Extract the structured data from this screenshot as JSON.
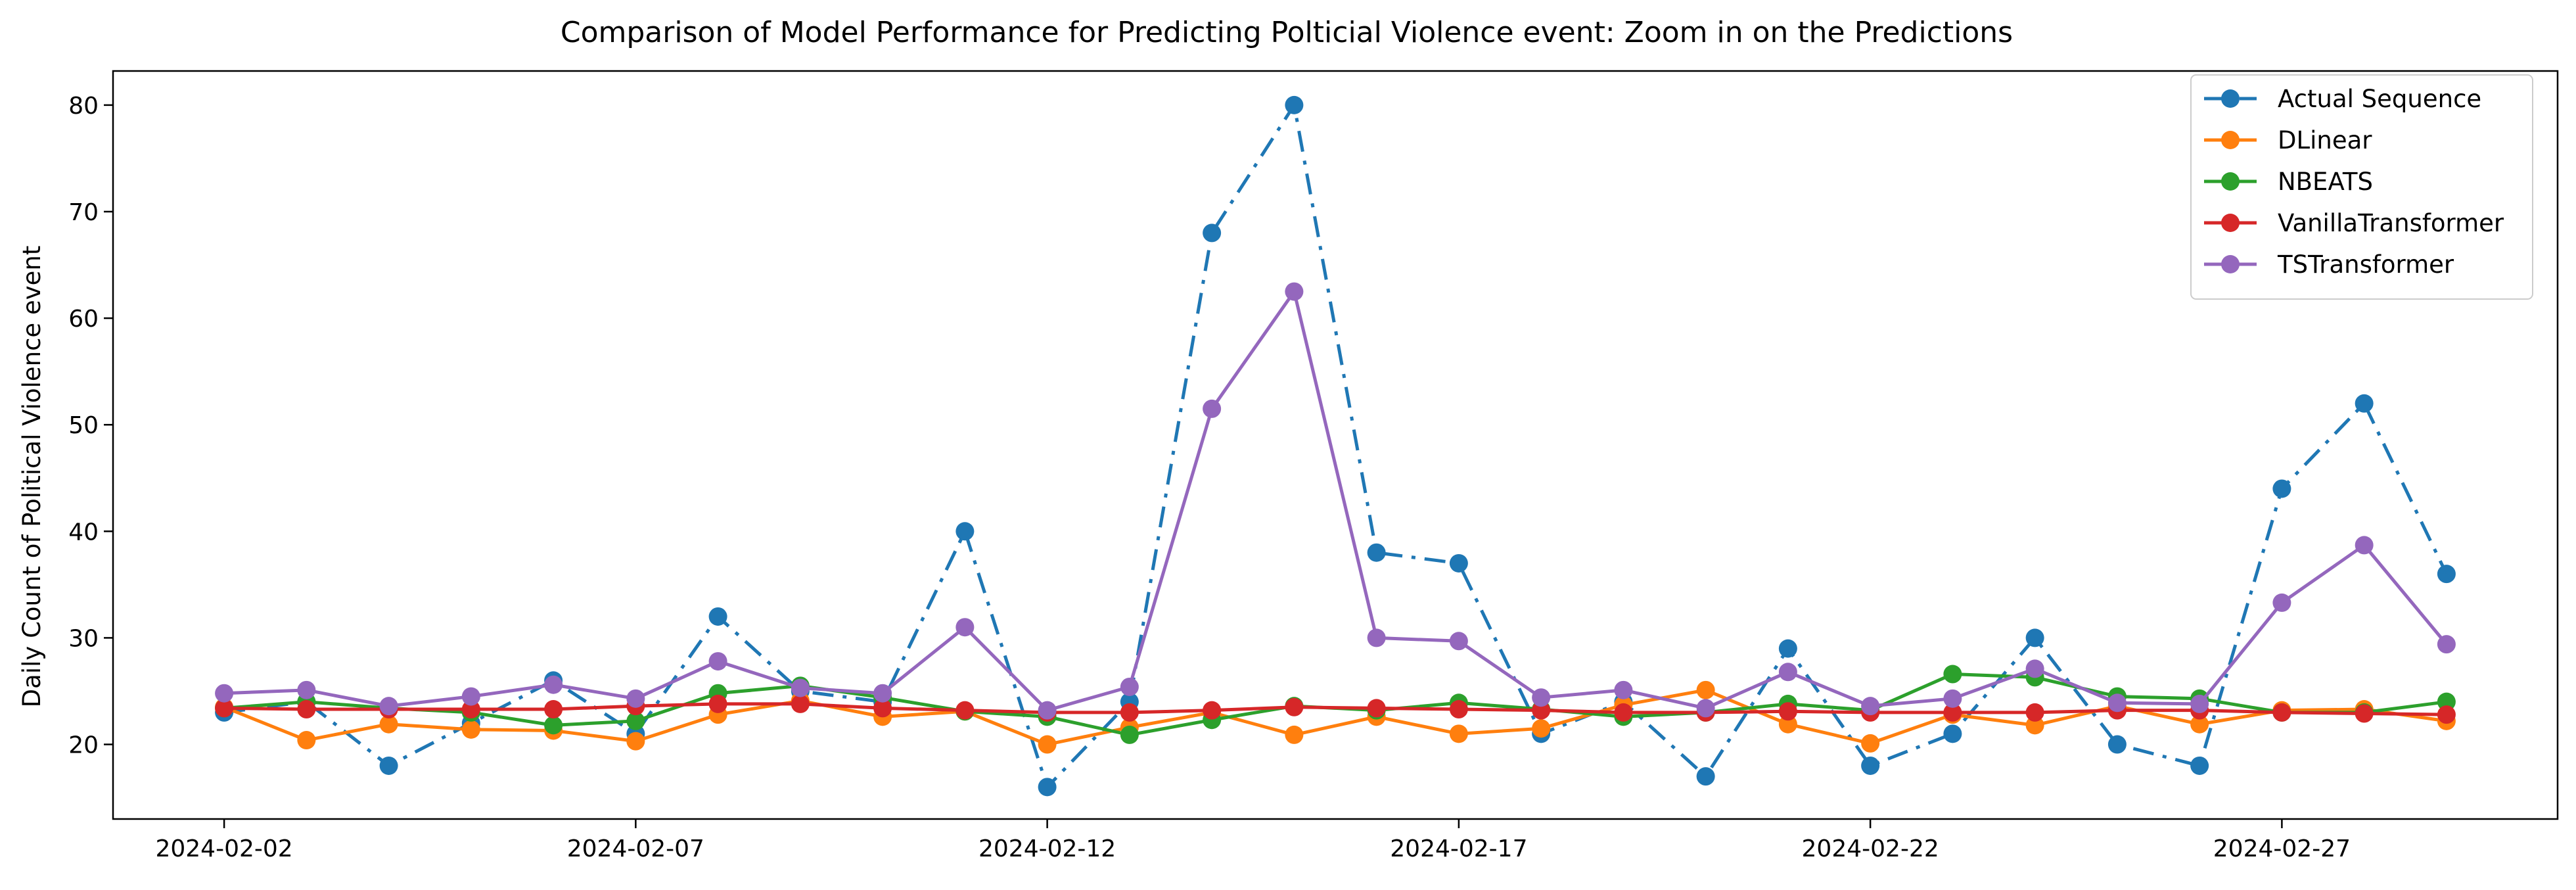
{
  "chart_data": {
    "type": "line",
    "title": "Comparison of Model Performance for Predicting Polticial Violence event: Zoom in on the Predictions",
    "xlabel": "",
    "ylabel": "Daily Count of Political Violence event",
    "x": [
      "2024-02-02",
      "2024-02-03",
      "2024-02-04",
      "2024-02-05",
      "2024-02-06",
      "2024-02-07",
      "2024-02-08",
      "2024-02-09",
      "2024-02-10",
      "2024-02-11",
      "2024-02-12",
      "2024-02-13",
      "2024-02-14",
      "2024-02-15",
      "2024-02-16",
      "2024-02-17",
      "2024-02-18",
      "2024-02-19",
      "2024-02-20",
      "2024-02-21",
      "2024-02-22",
      "2024-02-23",
      "2024-02-24",
      "2024-02-25",
      "2024-02-26",
      "2024-02-27",
      "2024-02-28",
      "2024-02-29"
    ],
    "x_ticks": [
      "2024-02-02",
      "2024-02-07",
      "2024-02-12",
      "2024-02-17",
      "2024-02-22",
      "2024-02-27"
    ],
    "xlim": [
      "2024-02-00.65",
      "2024-03-01.35"
    ],
    "y_ticks": [
      20,
      30,
      40,
      50,
      60,
      70,
      80
    ],
    "ylim": [
      13,
      83.2
    ],
    "grid": false,
    "legend_position": "top-right",
    "series": [
      {
        "name": "Actual Sequence",
        "color": "#1f77b4",
        "linestyle": "dashdot",
        "values": [
          23,
          24,
          18,
          22,
          26,
          21,
          32,
          25,
          24,
          40,
          16,
          24,
          68,
          80,
          38,
          37,
          21,
          24,
          17,
          29,
          18,
          21,
          30,
          20,
          18,
          44,
          52,
          36
        ]
      },
      {
        "name": "DLinear",
        "color": "#ff7f0e",
        "linestyle": "solid",
        "values": [
          23.5,
          20.4,
          21.9,
          21.4,
          21.3,
          20.3,
          22.8,
          24.1,
          22.6,
          23.1,
          20,
          21.6,
          23,
          20.9,
          22.6,
          21,
          21.5,
          23.7,
          25.1,
          21.9,
          20.1,
          22.8,
          21.8,
          23.6,
          21.9,
          23.2,
          23.3,
          22.2
        ]
      },
      {
        "name": "NBEATS",
        "color": "#2ca02c",
        "linestyle": "solid",
        "values": [
          23.4,
          24,
          23.4,
          23,
          21.8,
          22.2,
          24.8,
          25.5,
          24.4,
          23.1,
          22.6,
          20.9,
          22.3,
          23.6,
          23.2,
          23.9,
          23.3,
          22.6,
          23,
          23.8,
          23.2,
          26.6,
          26.3,
          24.5,
          24.3,
          23,
          23,
          24
        ]
      },
      {
        "name": "VanillaTransformer",
        "color": "#d62728",
        "linestyle": "solid",
        "values": [
          23.4,
          23.3,
          23.3,
          23.3,
          23.3,
          23.6,
          23.8,
          23.8,
          23.4,
          23.2,
          23,
          23,
          23.2,
          23.5,
          23.4,
          23.3,
          23.2,
          23,
          23,
          23.1,
          23,
          23,
          23,
          23.2,
          23.2,
          23,
          22.9,
          22.8
        ]
      },
      {
        "name": "TSTransformer",
        "color": "#9467bd",
        "linestyle": "solid",
        "values": [
          24.8,
          25.1,
          23.6,
          24.5,
          25.6,
          24.3,
          27.8,
          25.3,
          24.8,
          31,
          23.2,
          25.4,
          51.5,
          62.5,
          30,
          29.7,
          24.4,
          25.1,
          23.4,
          26.8,
          23.6,
          24.3,
          27.1,
          23.9,
          23.8,
          33.3,
          38.7,
          29.4
        ]
      }
    ]
  }
}
